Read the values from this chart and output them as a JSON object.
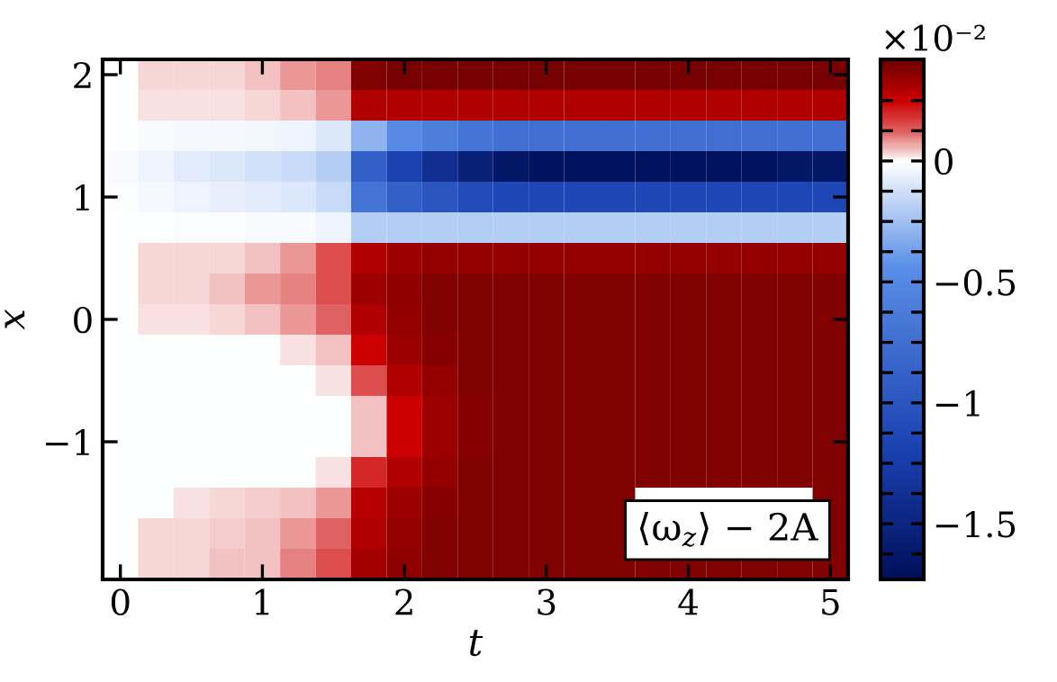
{
  "chart_data": {
    "type": "heatmap",
    "xlabel": "t",
    "ylabel": "x",
    "categories": [
      "0",
      null,
      null,
      null,
      "1",
      null,
      null,
      null,
      "2",
      null,
      null,
      null,
      "3",
      null,
      null,
      null,
      "4",
      null,
      null,
      null,
      "5"
    ],
    "y_categories": [
      "2",
      null,
      null,
      null,
      "1",
      null,
      null,
      null,
      "0",
      null,
      null,
      null,
      "−1",
      null,
      null,
      null,
      null
    ],
    "clim": [
      -1.73,
      0.42
    ],
    "cticks": [
      {
        "value": 0.25,
        "label": null
      },
      {
        "value": 0.125,
        "label": null
      },
      0,
      {
        "value": -0.125,
        "label": null
      },
      {
        "value": -0.25,
        "label": null
      },
      {
        "value": -0.375,
        "label": null
      },
      {
        "value": -0.5,
        "label": "−0.5"
      },
      {
        "value": -0.625,
        "label": null
      },
      {
        "value": -0.75,
        "label": null
      },
      {
        "value": -0.875,
        "label": null
      },
      {
        "value": -1,
        "label": "−1"
      },
      {
        "value": -1.125,
        "label": null
      },
      {
        "value": -1.25,
        "label": null
      },
      {
        "value": -1.375,
        "label": null
      },
      {
        "value": -1.5,
        "label": "−1.5"
      },
      {
        "value": -1.625,
        "label": null
      }
    ],
    "cells": [
      [
        0,
        0.03,
        0.03,
        0.03,
        0.05,
        0.08,
        0.1,
        0.38,
        0.4,
        0.4,
        0.4,
        0.4,
        0.4,
        0.4,
        0.4,
        0.4,
        0.4,
        0.4,
        0.4,
        0.4,
        0.4
      ],
      [
        0,
        0.02,
        0.02,
        0.02,
        0.03,
        0.05,
        0.08,
        0.3,
        0.3,
        0.3,
        0.3,
        0.3,
        0.3,
        0.3,
        0.3,
        0.3,
        0.3,
        0.3,
        0.3,
        0.3,
        0.3
      ],
      [
        0,
        -0.02,
        -0.03,
        -0.03,
        -0.04,
        -0.05,
        -0.1,
        -0.3,
        -0.5,
        -0.6,
        -0.7,
        -0.75,
        -0.75,
        -0.75,
        -0.75,
        -0.75,
        -0.75,
        -0.75,
        -0.75,
        -0.75,
        -0.75
      ],
      [
        -0.02,
        -0.05,
        -0.08,
        -0.1,
        -0.12,
        -0.15,
        -0.2,
        -0.9,
        -1.2,
        -1.4,
        -1.55,
        -1.65,
        -1.7,
        -1.7,
        -1.7,
        -1.7,
        -1.7,
        -1.7,
        -1.7,
        -1.65,
        -1.65
      ],
      [
        -0.01,
        -0.03,
        -0.05,
        -0.06,
        -0.08,
        -0.1,
        -0.15,
        -0.7,
        -0.9,
        -1.0,
        -1.1,
        -1.15,
        -1.15,
        -1.15,
        -1.15,
        -1.15,
        -1.15,
        -1.15,
        -1.15,
        -1.15,
        -1.15
      ],
      [
        0,
        0,
        -0.01,
        -0.01,
        -0.02,
        -0.02,
        -0.05,
        -0.2,
        -0.2,
        -0.2,
        -0.2,
        -0.2,
        -0.2,
        -0.2,
        -0.2,
        -0.2,
        -0.2,
        -0.2,
        -0.2,
        -0.2,
        -0.2
      ],
      [
        0,
        0.03,
        0.03,
        0.03,
        0.05,
        0.08,
        0.15,
        0.3,
        0.33,
        0.35,
        0.35,
        0.35,
        0.35,
        0.35,
        0.35,
        0.35,
        0.35,
        0.35,
        0.35,
        0.35,
        0.35
      ],
      [
        0,
        0.03,
        0.03,
        0.05,
        0.08,
        0.1,
        0.15,
        0.33,
        0.36,
        0.38,
        0.38,
        0.38,
        0.38,
        0.38,
        0.38,
        0.38,
        0.38,
        0.38,
        0.38,
        0.38,
        0.38
      ],
      [
        0,
        0.02,
        0.02,
        0.03,
        0.05,
        0.08,
        0.12,
        0.3,
        0.35,
        0.38,
        0.38,
        0.38,
        0.38,
        0.38,
        0.38,
        0.38,
        0.38,
        0.38,
        0.38,
        0.38,
        0.38
      ],
      [
        0,
        0,
        0,
        0,
        0,
        0.02,
        0.05,
        0.25,
        0.33,
        0.37,
        0.38,
        0.38,
        0.38,
        0.38,
        0.38,
        0.38,
        0.38,
        0.38,
        0.38,
        0.38,
        0.38
      ],
      [
        0,
        0,
        0,
        0,
        0,
        0,
        0.02,
        0.15,
        0.3,
        0.35,
        0.38,
        0.38,
        0.38,
        0.38,
        0.38,
        0.38,
        0.38,
        0.38,
        0.38,
        0.38,
        0.38
      ],
      [
        0,
        0,
        0,
        0,
        0,
        0,
        0,
        0.05,
        0.25,
        0.33,
        0.37,
        0.38,
        0.38,
        0.38,
        0.38,
        0.38,
        0.38,
        0.38,
        0.38,
        0.38,
        0.38
      ],
      [
        0,
        0,
        0,
        0,
        0,
        0,
        0,
        0.05,
        0.25,
        0.33,
        0.37,
        0.38,
        0.38,
        0.38,
        0.38,
        0.38,
        0.38,
        0.38,
        0.38,
        0.38,
        0.38
      ],
      [
        0,
        0,
        0,
        0,
        0,
        0,
        0.02,
        0.2,
        0.3,
        0.35,
        0.38,
        0.38,
        0.38,
        0.38,
        0.38,
        0.38,
        0.38,
        0.38,
        0.38,
        0.38,
        0.38
      ],
      [
        0,
        0,
        0.02,
        0.03,
        0.04,
        0.05,
        0.08,
        0.28,
        0.33,
        0.37,
        0.38,
        0.38,
        0.38,
        0.38,
        0.38,
        null,
        null,
        null,
        null,
        null,
        0.38
      ],
      [
        0,
        0.03,
        0.03,
        0.04,
        0.05,
        0.08,
        0.12,
        0.3,
        0.35,
        0.38,
        0.38,
        0.38,
        0.38,
        0.38,
        0.38,
        null,
        null,
        null,
        null,
        null,
        0.38
      ],
      [
        0,
        0.03,
        0.03,
        0.05,
        0.05,
        0.1,
        0.15,
        0.32,
        0.36,
        0.38,
        0.38,
        0.38,
        0.38,
        0.38,
        0.38,
        0.38,
        0.38,
        0.38,
        0.38,
        0.38,
        0.38
      ]
    ],
    "annotations": [
      "⟨ω$_{z}$⟩ − 2A",
      "×10⁻²"
    ]
  }
}
